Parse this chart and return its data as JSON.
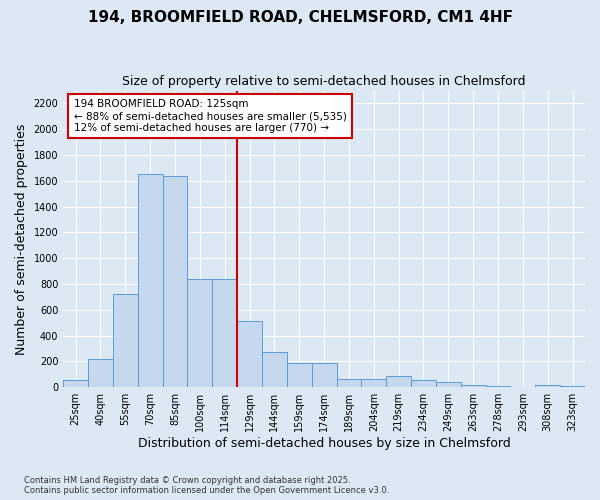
{
  "title": "194, BROOMFIELD ROAD, CHELMSFORD, CM1 4HF",
  "subtitle": "Size of property relative to semi-detached houses in Chelmsford",
  "xlabel": "Distribution of semi-detached houses by size in Chelmsford",
  "ylabel": "Number of semi-detached properties",
  "footer1": "Contains HM Land Registry data © Crown copyright and database right 2025.",
  "footer2": "Contains public sector information licensed under the Open Government Licence v3.0.",
  "bins": [
    "25sqm",
    "40sqm",
    "55sqm",
    "70sqm",
    "85sqm",
    "100sqm",
    "114sqm",
    "129sqm",
    "144sqm",
    "159sqm",
    "174sqm",
    "189sqm",
    "204sqm",
    "219sqm",
    "234sqm",
    "249sqm",
    "263sqm",
    "278sqm",
    "293sqm",
    "308sqm",
    "323sqm"
  ],
  "bar_values": [
    55,
    220,
    720,
    1650,
    1640,
    840,
    840,
    510,
    270,
    185,
    185,
    65,
    65,
    90,
    55,
    40,
    20,
    10,
    0,
    20,
    10
  ],
  "bar_color": "#c5d8ed",
  "bar_edge_color": "#5b9bd5",
  "vline_index": 7,
  "vline_color": "#cc0000",
  "annotation_text": "194 BROOMFIELD ROAD: 125sqm\n← 88% of semi-detached houses are smaller (5,535)\n12% of semi-detached houses are larger (770) →",
  "annotation_box_color": "#ffffff",
  "annotation_box_edge": "#cc0000",
  "ylim": [
    0,
    2300
  ],
  "yticks": [
    0,
    200,
    400,
    600,
    800,
    1000,
    1200,
    1400,
    1600,
    1800,
    2000,
    2200
  ],
  "background_color": "#dce9f5",
  "plot_background": "#dce9f5",
  "title_fontsize": 11,
  "subtitle_fontsize": 9,
  "axis_label_fontsize": 9,
  "tick_fontsize": 7
}
